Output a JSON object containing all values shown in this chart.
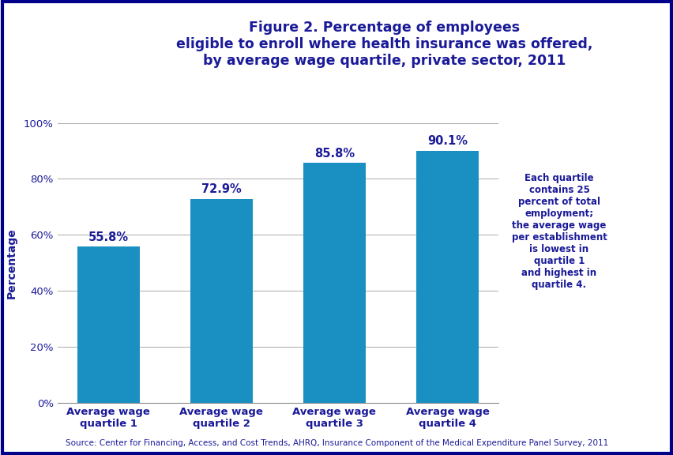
{
  "title_line1": "Figure 2. Percentage of employees",
  "title_line2": "eligible to enroll where health insurance was offered,",
  "title_line3": "by average wage quartile, private sector, 2011",
  "categories": [
    "Average wage\nquartile 1",
    "Average wage\nquartile 2",
    "Average wage\nquartile 3",
    "Average wage\nquartile 4"
  ],
  "values": [
    55.8,
    72.9,
    85.8,
    90.1
  ],
  "bar_color": "#1a8fc1",
  "ylabel": "Percentage",
  "ylim": [
    0,
    100
  ],
  "yticks": [
    0,
    20,
    40,
    60,
    80,
    100
  ],
  "ytick_labels": [
    "0%",
    "20%",
    "40%",
    "60%",
    "80%",
    "100%"
  ],
  "value_labels": [
    "55.8%",
    "72.9%",
    "85.8%",
    "90.1%"
  ],
  "annotation_text": "Each quartile\ncontains 25\npercent of total\nemployment;\nthe average wage\nper establishment\nis lowest in\nquartile 1\nand highest in\nquartile 4.",
  "source_text": "Source: Center for Financing, Access, and Cost Trends, AHRQ, Insurance Component of the Medical Expenditure Panel Survey, 2011",
  "title_color": "#1a1a99",
  "bar_text_color": "#1a1a99",
  "axis_text_color": "#1a1a99",
  "annotation_color": "#1a1a99",
  "source_color": "#1a1a99",
  "grid_color": "#aaaaaa",
  "border_color": "#00008b",
  "background_color": "#ffffff",
  "stripe_color": "#00008b",
  "logo_bg_color": "#1a8fc1",
  "title_fontsize": 12.5,
  "bar_label_fontsize": 10.5,
  "axis_label_fontsize": 10,
  "tick_label_fontsize": 9.5,
  "annotation_fontsize": 8.5,
  "source_fontsize": 7.5
}
